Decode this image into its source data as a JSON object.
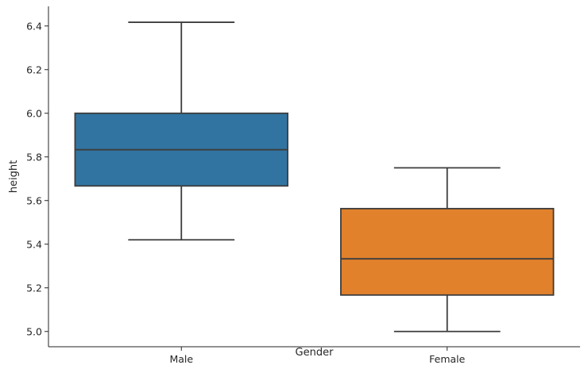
{
  "chart_data": {
    "type": "box",
    "xlabel": "Gender",
    "ylabel": "height",
    "ylim": [
      4.93,
      6.49
    ],
    "yticks": [
      "5.0",
      "5.2",
      "5.4",
      "5.6",
      "5.8",
      "6.0",
      "6.2",
      "6.4"
    ],
    "grid": false,
    "categories": [
      "Male",
      "Female"
    ],
    "boxes": [
      {
        "category": "Male",
        "whisker_low": 5.42,
        "q1": 5.667,
        "median": 5.833,
        "q3": 6.0,
        "whisker_high": 6.417,
        "color": "#3274a1"
      },
      {
        "category": "Female",
        "whisker_low": 5.0,
        "q1": 5.167,
        "median": 5.333,
        "q3": 5.563,
        "whisker_high": 5.75,
        "color": "#e1812c"
      }
    ],
    "line_color": "#3d3d3d",
    "axis_color": "#262626"
  }
}
